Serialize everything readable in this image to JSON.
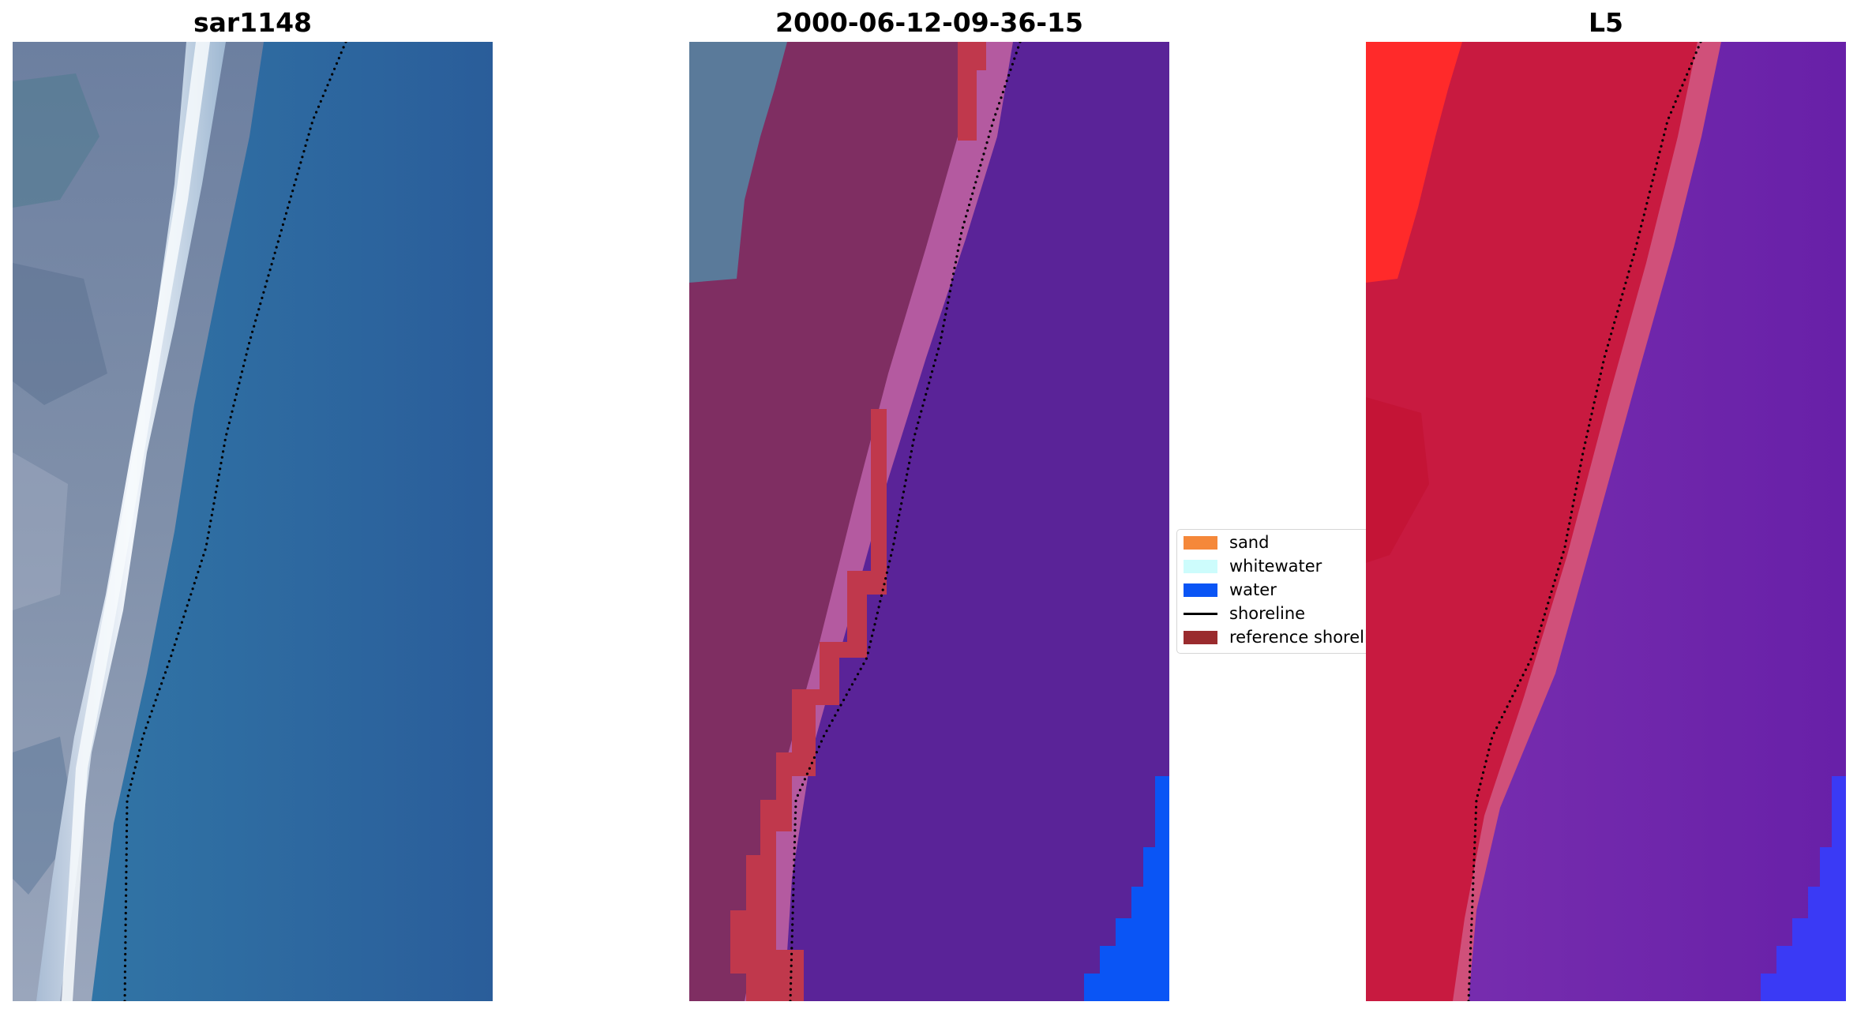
{
  "panels": [
    {
      "title": "sar1148"
    },
    {
      "title": "2000-06-12-09-36-15"
    },
    {
      "title": "L5"
    }
  ],
  "legend": {
    "items": [
      {
        "label": "sand",
        "color": "#f5883a"
      },
      {
        "label": "whitewater",
        "color": "#cdfcfc"
      },
      {
        "label": "water",
        "color": "#0a55f5"
      },
      {
        "label": "shoreline",
        "color": "#000000"
      },
      {
        "label": "reference shoreline",
        "color": "#9a2b2e"
      }
    ]
  },
  "colors": {
    "rgb_water": "#2e6aa0",
    "rgb_land": "#6a7f9f",
    "rgb_whitewater": "#e8f0f8",
    "class_water": "#5a2398",
    "class_land": "#7f2e62",
    "class_pink": "#b45aa0",
    "class_reference": "#c0384c",
    "class_blue": "#0a55f5",
    "class_teal": "#5a7a9a",
    "ndwi_red": "#c81a40",
    "ndwi_bright_red": "#ff2a2a",
    "ndwi_purple": "#6a20a8",
    "ndwi_blue": "#3a3af5"
  }
}
